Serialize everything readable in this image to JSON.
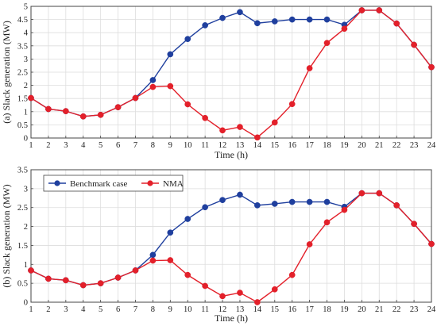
{
  "chart_data": [
    {
      "type": "line",
      "panel": "top",
      "title": "",
      "xlabel": "Time (h)",
      "ylabel": "(a) Slack generation (MW)",
      "x": [
        1,
        2,
        3,
        4,
        5,
        6,
        7,
        8,
        9,
        10,
        11,
        12,
        13,
        14,
        15,
        16,
        17,
        18,
        19,
        20,
        21,
        22,
        23,
        24
      ],
      "xlim": [
        1,
        24
      ],
      "ylim": [
        0,
        5
      ],
      "xticks": [
        "1",
        "2",
        "3",
        "4",
        "5",
        "6",
        "7",
        "8",
        "9",
        "10",
        "11",
        "12",
        "13",
        "14",
        "15",
        "16",
        "17",
        "18",
        "19",
        "20",
        "21",
        "22",
        "23",
        "24"
      ],
      "yticks": [
        "0",
        "0.5",
        "1",
        "1.5",
        "2",
        "2.5",
        "3",
        "3.5",
        "4",
        "4.5",
        "5"
      ],
      "grid": true,
      "legend": "none",
      "series": [
        {
          "name": "Benchmark case",
          "color": "#1f3f9e",
          "values": [
            1.52,
            1.1,
            1.02,
            0.82,
            0.88,
            1.17,
            1.52,
            2.2,
            3.18,
            3.76,
            4.28,
            4.56,
            4.78,
            4.36,
            4.43,
            4.5,
            4.5,
            4.5,
            4.3,
            4.85,
            4.85,
            4.35,
            3.54,
            2.69
          ]
        },
        {
          "name": "NMA",
          "color": "#e3202a",
          "values": [
            1.52,
            1.1,
            1.02,
            0.82,
            0.88,
            1.17,
            1.52,
            1.94,
            1.97,
            1.28,
            0.76,
            0.29,
            0.42,
            0.02,
            0.59,
            1.29,
            2.65,
            3.61,
            4.15,
            4.85,
            4.85,
            4.35,
            3.54,
            2.69
          ]
        }
      ]
    },
    {
      "type": "line",
      "panel": "bottom",
      "title": "",
      "xlabel": "Time (h)",
      "ylabel": "(b) Slack generation (MW)",
      "x": [
        1,
        2,
        3,
        4,
        5,
        6,
        7,
        8,
        9,
        10,
        11,
        12,
        13,
        14,
        15,
        16,
        17,
        18,
        19,
        20,
        21,
        22,
        23,
        24
      ],
      "xlim": [
        1,
        24
      ],
      "ylim": [
        0,
        3.5
      ],
      "xticks": [
        "1",
        "2",
        "3",
        "4",
        "5",
        "6",
        "7",
        "8",
        "9",
        "10",
        "11",
        "12",
        "13",
        "14",
        "15",
        "16",
        "17",
        "18",
        "19",
        "20",
        "21",
        "22",
        "23",
        "24"
      ],
      "yticks": [
        "0",
        "0.5",
        "1",
        "1.5",
        "2",
        "2.5",
        "3",
        "3.5"
      ],
      "grid": true,
      "legend": "top-left",
      "series": [
        {
          "name": "Benchmark case",
          "color": "#1f3f9e",
          "values": [
            0.84,
            0.62,
            0.58,
            0.45,
            0.5,
            0.65,
            0.84,
            1.25,
            1.84,
            2.2,
            2.51,
            2.7,
            2.84,
            2.56,
            2.6,
            2.65,
            2.65,
            2.65,
            2.52,
            2.88,
            2.88,
            2.56,
            2.07,
            1.54
          ]
        },
        {
          "name": "NMA",
          "color": "#e3202a",
          "values": [
            0.84,
            0.62,
            0.58,
            0.45,
            0.5,
            0.65,
            0.84,
            1.1,
            1.11,
            0.72,
            0.43,
            0.16,
            0.25,
            0.0,
            0.34,
            0.72,
            1.53,
            2.11,
            2.44,
            2.88,
            2.88,
            2.56,
            2.07,
            1.54
          ]
        }
      ]
    }
  ]
}
